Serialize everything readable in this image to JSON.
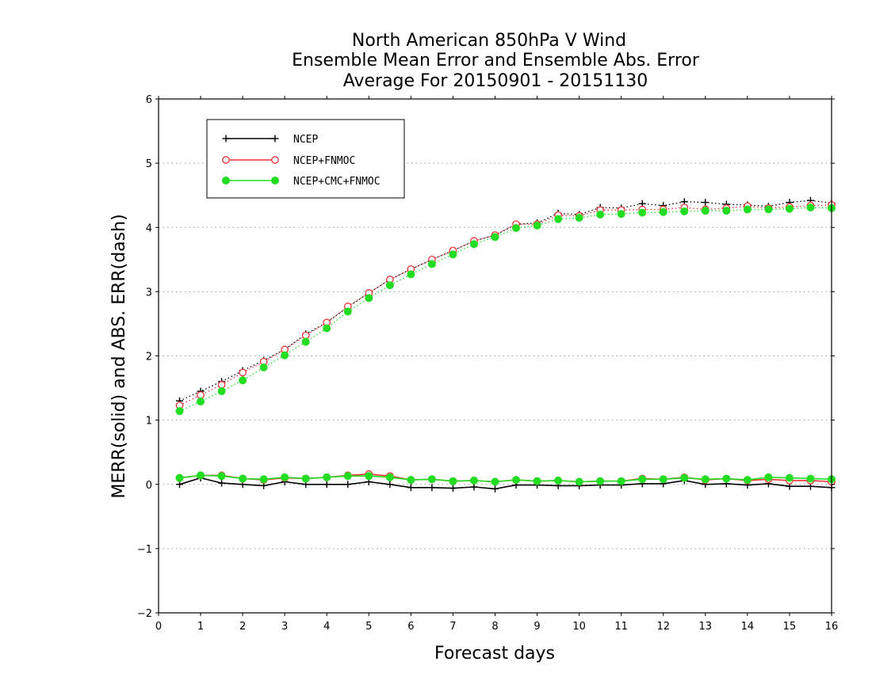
{
  "chart_data": {
    "type": "line",
    "title": [
      "North American 850hPa V Wind",
      "Ensemble Mean Error and Ensemble Abs. Error",
      "Average For 20150901 - 20151130"
    ],
    "xlabel": "Forecast days",
    "ylabel": "MERR(solid) and ABS. ERR(dash)",
    "xlim": [
      0,
      16
    ],
    "ylim": [
      -2,
      6
    ],
    "xticks": [
      "0",
      "1",
      "2",
      "3",
      "4",
      "5",
      "6",
      "7",
      "8",
      "9",
      "10",
      "11",
      "12",
      "13",
      "14",
      "15",
      "16"
    ],
    "yticks": [
      "-2",
      "-1",
      "0",
      "1",
      "2",
      "3",
      "4",
      "5",
      "6"
    ],
    "grid": "horizontal dotted",
    "legend_position": "top-left",
    "x": [
      0.5,
      1,
      1.5,
      2,
      2.5,
      3,
      3.5,
      4,
      4.5,
      5,
      5.5,
      6,
      6.5,
      7,
      7.5,
      8,
      8.5,
      9,
      9.5,
      10,
      10.5,
      11,
      11.5,
      12,
      12.5,
      13,
      13.5,
      14,
      14.5,
      15,
      15.5,
      16
    ],
    "series": [
      {
        "name": "NCEP",
        "color": "#000000",
        "marker": "plus",
        "merr": [
          0.0,
          0.1,
          0.02,
          0.0,
          -0.02,
          0.04,
          0.0,
          0.0,
          0.0,
          0.04,
          0.0,
          -0.05,
          -0.05,
          -0.06,
          -0.04,
          -0.07,
          -0.01,
          -0.01,
          -0.02,
          -0.02,
          -0.01,
          -0.01,
          0.01,
          0.01,
          0.06,
          0.0,
          0.01,
          -0.01,
          0.01,
          -0.03,
          -0.03,
          -0.05
        ],
        "abs_err": [
          1.3,
          1.45,
          1.6,
          1.77,
          1.93,
          2.1,
          2.34,
          2.52,
          2.76,
          2.98,
          3.19,
          3.35,
          3.5,
          3.64,
          3.79,
          3.88,
          4.05,
          4.07,
          4.22,
          4.2,
          4.31,
          4.3,
          4.37,
          4.34,
          4.4,
          4.39,
          4.36,
          4.35,
          4.33,
          4.39,
          4.42,
          4.38
        ]
      },
      {
        "name": "NCEP+FNMOC",
        "color": "#ee3333",
        "marker": "open-circle",
        "merr": [
          0.1,
          0.14,
          0.14,
          0.09,
          0.07,
          0.1,
          0.09,
          0.11,
          0.14,
          0.16,
          0.13,
          0.07,
          0.08,
          0.05,
          0.06,
          0.04,
          0.07,
          0.05,
          0.06,
          0.04,
          0.05,
          0.05,
          0.09,
          0.08,
          0.11,
          0.07,
          0.09,
          0.06,
          0.08,
          0.06,
          0.06,
          0.04
        ],
        "abs_err": [
          1.23,
          1.39,
          1.55,
          1.74,
          1.91,
          2.1,
          2.32,
          2.52,
          2.77,
          2.98,
          3.19,
          3.35,
          3.5,
          3.64,
          3.79,
          3.88,
          4.05,
          4.05,
          4.19,
          4.18,
          4.27,
          4.27,
          4.28,
          4.28,
          4.31,
          4.28,
          4.3,
          4.33,
          4.3,
          4.32,
          4.34,
          4.35
        ]
      },
      {
        "name": "NCEP+CMC+FNMOC",
        "color": "#22dd22",
        "marker": "filled-circle",
        "merr": [
          0.1,
          0.14,
          0.13,
          0.09,
          0.08,
          0.11,
          0.09,
          0.11,
          0.13,
          0.13,
          0.11,
          0.07,
          0.08,
          0.05,
          0.06,
          0.04,
          0.07,
          0.05,
          0.06,
          0.04,
          0.05,
          0.05,
          0.08,
          0.08,
          0.1,
          0.08,
          0.09,
          0.07,
          0.11,
          0.1,
          0.09,
          0.08
        ],
        "abs_err": [
          1.14,
          1.29,
          1.45,
          1.62,
          1.82,
          2.01,
          2.22,
          2.43,
          2.69,
          2.9,
          3.1,
          3.27,
          3.43,
          3.58,
          3.74,
          3.85,
          3.99,
          4.03,
          4.13,
          4.15,
          4.2,
          4.21,
          4.23,
          4.24,
          4.25,
          4.26,
          4.26,
          4.28,
          4.28,
          4.29,
          4.31,
          4.3
        ]
      }
    ]
  }
}
